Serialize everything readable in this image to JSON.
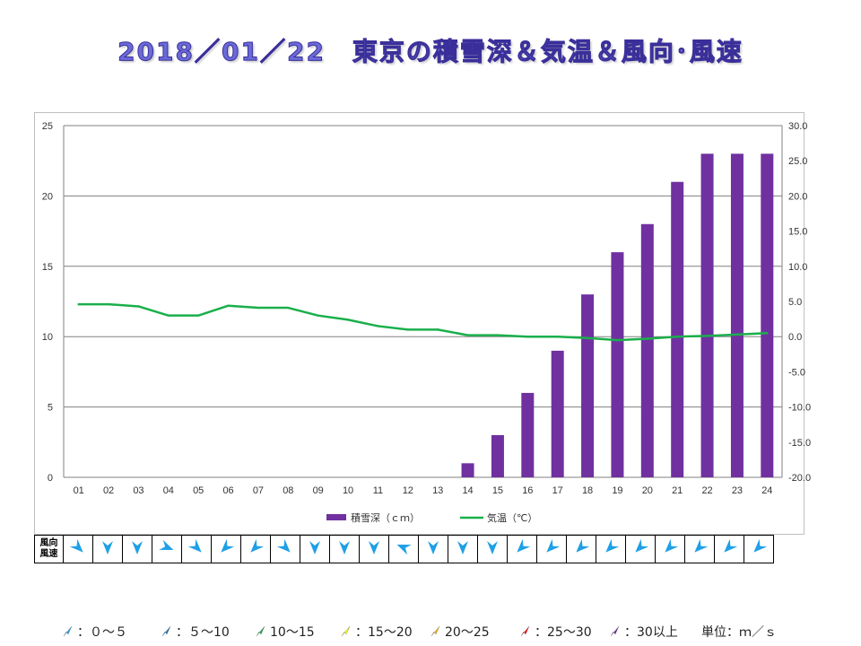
{
  "title": "2018／01／22　東京の積雪深＆気温＆風向･風速",
  "chart_data": {
    "type": "bar+line",
    "categories": [
      "01",
      "02",
      "03",
      "04",
      "05",
      "06",
      "07",
      "08",
      "09",
      "10",
      "11",
      "12",
      "13",
      "14",
      "15",
      "16",
      "17",
      "18",
      "19",
      "20",
      "21",
      "22",
      "23",
      "24"
    ],
    "series": [
      {
        "name": "積雪深（ｃｍ）",
        "type": "bar",
        "axis": "left",
        "color": "#7030a0",
        "values": [
          0,
          0,
          0,
          0,
          0,
          0,
          0,
          0,
          0,
          0,
          0,
          0,
          0,
          1,
          3,
          6,
          9,
          13,
          16,
          18,
          21,
          23,
          23,
          23
        ]
      },
      {
        "name": "気温（℃）",
        "type": "line",
        "axis": "right",
        "color": "#1aaf4b",
        "values": [
          4.6,
          4.6,
          4.3,
          3.0,
          3.0,
          4.4,
          4.1,
          4.1,
          3.0,
          2.4,
          1.5,
          1.0,
          1.0,
          0.2,
          0.2,
          0.0,
          0.0,
          -0.2,
          -0.5,
          -0.3,
          0.0,
          0.1,
          0.3,
          0.5
        ]
      }
    ],
    "y_left": {
      "min": 0,
      "max": 25,
      "step": 5,
      "ticks": [
        "0",
        "5",
        "10",
        "15",
        "20",
        "25"
      ]
    },
    "y_right": {
      "min": -20,
      "max": 30,
      "step": 5,
      "ticks": [
        "-20.0",
        "-15.0",
        "-10.0",
        "-5.0",
        "0.0",
        "5.0",
        "10.0",
        "15.0",
        "20.0",
        "25.0",
        "30.0"
      ]
    },
    "grid": true,
    "legend_position": "bottom"
  },
  "wind": {
    "header": [
      "風向",
      "風速"
    ],
    "speed_class": "0〜5",
    "directions": [
      "NW",
      "N",
      "N",
      "WNW",
      "NW",
      "NE",
      "NE",
      "NW",
      "N",
      "N",
      "N",
      "ESE",
      "N",
      "N",
      "N",
      "NE",
      "NE",
      "NE",
      "NE",
      "NE",
      "NE",
      "NE",
      "NE",
      "NE"
    ]
  },
  "wind_legend": [
    {
      "label": "：０～５",
      "color": "#1ea0e6"
    },
    {
      "label": "：５～10",
      "color": "#1f6fb5"
    },
    {
      "label": "10～15",
      "color": "#1aaa4a"
    },
    {
      "label": "：15～20",
      "color": "#ffff00"
    },
    {
      "label": "20～25",
      "color": "#ffb000"
    },
    {
      "label": "：25～30",
      "color": "#ff0000"
    },
    {
      "label": "：30以上",
      "color": "#7030a0"
    }
  ],
  "unit_label": "単位：ｍ／ｓ"
}
